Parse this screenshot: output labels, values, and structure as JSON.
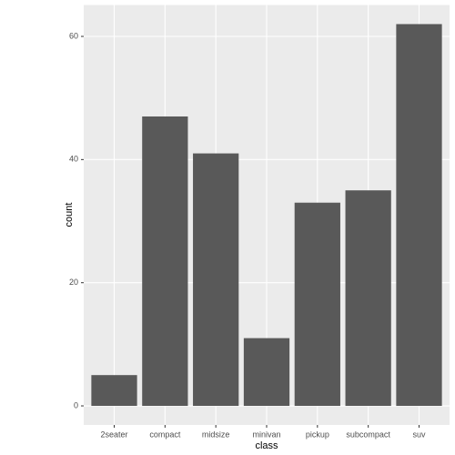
{
  "chart_data": {
    "type": "bar",
    "categories": [
      "2seater",
      "compact",
      "midsize",
      "minivan",
      "pickup",
      "subcompact",
      "suv"
    ],
    "values": [
      5,
      47,
      41,
      11,
      33,
      35,
      62
    ],
    "color": "#595959",
    "ylim": [
      -3.1,
      65.1
    ],
    "yticks": [
      0,
      20,
      40,
      60
    ],
    "grid": true,
    "x_label": "class",
    "y_label": "count"
  }
}
